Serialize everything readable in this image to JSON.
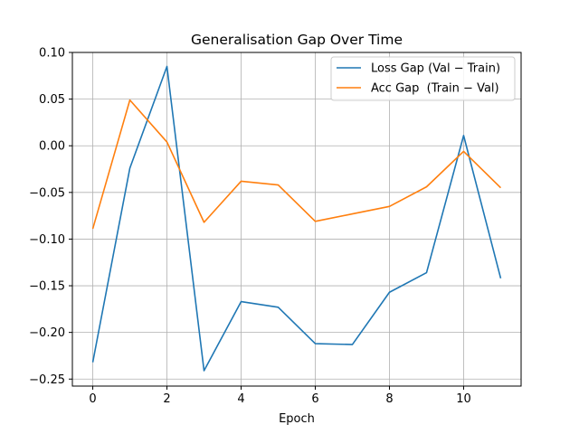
{
  "chart_data": {
    "type": "line",
    "title": "Generalisation Gap Over Time",
    "xlabel": "Epoch",
    "ylabel": "",
    "x": [
      0,
      1,
      2,
      3,
      4,
      5,
      6,
      7,
      8,
      9,
      10,
      11
    ],
    "xlim": [
      -0.55,
      11.55
    ],
    "ylim": [
      -0.2575,
      0.1
    ],
    "xticks": [
      0,
      2,
      4,
      6,
      8,
      10
    ],
    "yticks": [
      -0.25,
      -0.2,
      -0.15,
      -0.1,
      -0.05,
      0.0,
      0.05,
      0.1
    ],
    "ytick_labels": [
      "−0.25",
      "−0.20",
      "−0.15",
      "−0.10",
      "−0.05",
      "0.00",
      "0.05",
      "0.10"
    ],
    "grid": true,
    "legend_position": "top-right",
    "series": [
      {
        "name": "Loss Gap (Val − Train)",
        "color": "#1f77b4",
        "values": [
          -0.232,
          -0.024,
          0.085,
          -0.241,
          -0.167,
          -0.173,
          -0.212,
          -0.213,
          -0.157,
          -0.136,
          0.011,
          -0.142
        ]
      },
      {
        "name": "Acc Gap  (Train − Val)",
        "color": "#ff7f0e",
        "values": [
          -0.089,
          0.049,
          0.004,
          -0.082,
          -0.038,
          -0.042,
          -0.081,
          -0.073,
          -0.065,
          -0.044,
          -0.006,
          -0.045
        ]
      }
    ]
  }
}
